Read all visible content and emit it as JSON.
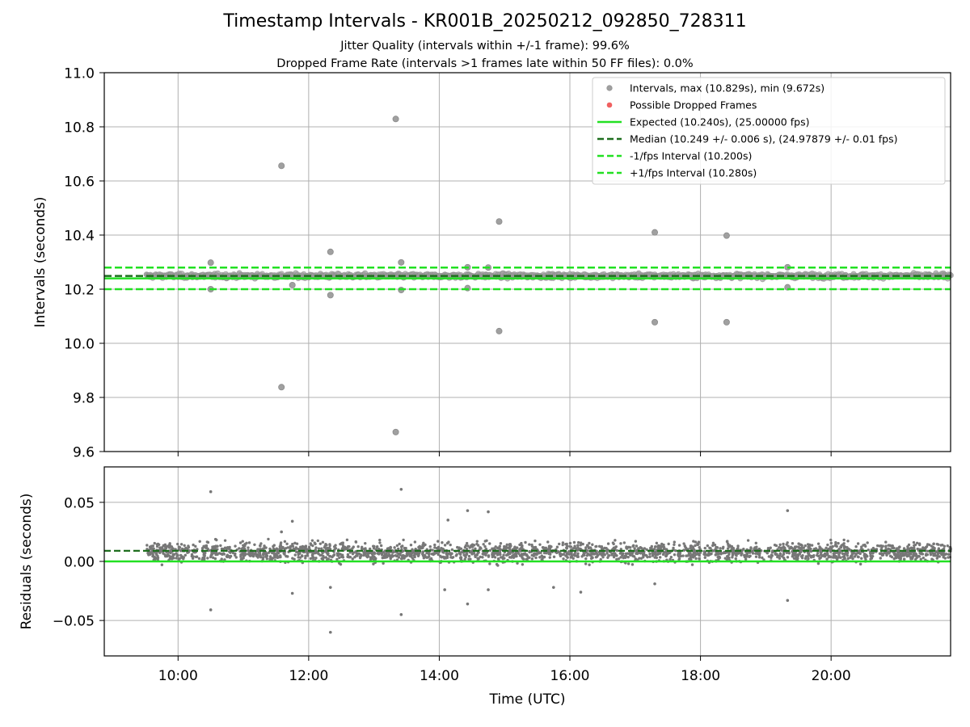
{
  "figure": {
    "title": "Timestamp Intervals - KR001B_20250212_092850_728311",
    "subtitle_1": "Jitter Quality (intervals within +/-1 frame): 99.6%",
    "subtitle_2": "Dropped Frame Rate (intervals >1 frames late within 50 FF files): 0.0%"
  },
  "chart_data": [
    {
      "type": "scatter",
      "panel": "top",
      "ylabel": "Intervals (seconds)",
      "xlabel": "",
      "xlim_hours": [
        8.87,
        21.83
      ],
      "ylim": [
        9.6,
        11.0
      ],
      "yticks": [
        9.6,
        9.8,
        10.0,
        10.2,
        10.4,
        10.6,
        10.8,
        11.0
      ],
      "ytick_labels": [
        "9.6",
        "9.8",
        "10.0",
        "10.2",
        "10.4",
        "10.6",
        "10.8",
        "11.0"
      ],
      "grid": true,
      "legend_position": "top-right",
      "colors": {
        "intervals": "#a0a0a0",
        "dropped": "#f06060",
        "expected": "#22e022",
        "median": "#1e6e1e",
        "bounds": "#22e022"
      },
      "legend": [
        {
          "label": "Intervals, max (10.829s), min (9.672s)",
          "style": "dot-gray"
        },
        {
          "label": "Possible Dropped Frames",
          "style": "dot-red"
        },
        {
          "label": "Expected (10.240s), (25.00000 fps)",
          "style": "line-green"
        },
        {
          "label": "Median (10.249 +/- 0.006 s), (24.97879 +/- 0.01 fps)",
          "style": "dash-darkgreen"
        },
        {
          "label": "-1/fps Interval (10.200s)",
          "style": "dash-green"
        },
        {
          "label": "+1/fps Interval (10.280s)",
          "style": "dash-green"
        }
      ],
      "reference_lines": {
        "expected": 10.24,
        "median": 10.249,
        "minus_1fps": 10.2,
        "plus_1fps": 10.28
      },
      "series": [
        {
          "name": "Intervals, max (10.829s), min (9.672s)",
          "x_start": "09:31",
          "x_end": "21:50",
          "band_center": 10.249,
          "band_spread": 0.012
        },
        {
          "name": "Possible Dropped Frames",
          "points": []
        }
      ],
      "outliers": [
        {
          "x": "10:30",
          "y": 10.298
        },
        {
          "x": "10:30",
          "y": 10.2
        },
        {
          "x": "11:35",
          "y": 10.656
        },
        {
          "x": "11:35",
          "y": 9.838
        },
        {
          "x": "12:20",
          "y": 10.338
        },
        {
          "x": "12:20",
          "y": 10.178
        },
        {
          "x": "13:20",
          "y": 10.829
        },
        {
          "x": "13:20",
          "y": 9.672
        },
        {
          "x": "13:25",
          "y": 10.299
        },
        {
          "x": "13:25",
          "y": 10.197
        },
        {
          "x": "14:55",
          "y": 10.45
        },
        {
          "x": "14:55",
          "y": 10.045
        },
        {
          "x": "17:18",
          "y": 10.41
        },
        {
          "x": "17:18",
          "y": 10.078
        },
        {
          "x": "18:24",
          "y": 10.398
        },
        {
          "x": "18:24",
          "y": 10.078
        },
        {
          "x": "19:20",
          "y": 10.281
        },
        {
          "x": "19:20",
          "y": 10.207
        },
        {
          "x": "14:26",
          "y": 10.281
        },
        {
          "x": "14:26",
          "y": 10.204
        },
        {
          "x": "14:45",
          "y": 10.28
        },
        {
          "x": "11:45",
          "y": 10.215
        }
      ]
    },
    {
      "type": "scatter",
      "panel": "bottom",
      "ylabel": "Residuals (seconds)",
      "xlabel": "Time (UTC)",
      "xlim_hours": [
        8.87,
        21.83
      ],
      "ylim": [
        -0.08,
        0.08
      ],
      "yticks": [
        -0.05,
        0.0,
        0.05
      ],
      "ytick_labels": [
        "−0.05",
        "0.00",
        "0.05"
      ],
      "xticks": [
        "10:00",
        "12:00",
        "14:00",
        "16:00",
        "18:00",
        "20:00"
      ],
      "grid": true,
      "colors": {
        "residuals": "#777777",
        "zero": "#22e022",
        "median": "#1e6e1e"
      },
      "reference_lines": {
        "zero": 0.0,
        "median": 0.009
      },
      "series": [
        {
          "name": "Residuals",
          "x_start": "09:31",
          "x_end": "21:50",
          "band_center": 0.008,
          "band_spread": 0.008
        }
      ],
      "outliers": [
        {
          "x": "10:30",
          "y": 0.059
        },
        {
          "x": "10:30",
          "y": -0.041
        },
        {
          "x": "11:35",
          "y": 0.025
        },
        {
          "x": "11:45",
          "y": 0.034
        },
        {
          "x": "11:45",
          "y": -0.027
        },
        {
          "x": "12:20",
          "y": -0.022
        },
        {
          "x": "12:20",
          "y": -0.06
        },
        {
          "x": "13:25",
          "y": 0.061
        },
        {
          "x": "13:25",
          "y": -0.045
        },
        {
          "x": "14:05",
          "y": -0.024
        },
        {
          "x": "14:08",
          "y": 0.035
        },
        {
          "x": "14:26",
          "y": 0.043
        },
        {
          "x": "14:26",
          "y": -0.036
        },
        {
          "x": "14:45",
          "y": 0.042
        },
        {
          "x": "14:45",
          "y": -0.024
        },
        {
          "x": "15:45",
          "y": -0.022
        },
        {
          "x": "16:10",
          "y": -0.026
        },
        {
          "x": "17:18",
          "y": -0.019
        },
        {
          "x": "19:20",
          "y": 0.043
        },
        {
          "x": "19:20",
          "y": -0.033
        }
      ]
    }
  ]
}
